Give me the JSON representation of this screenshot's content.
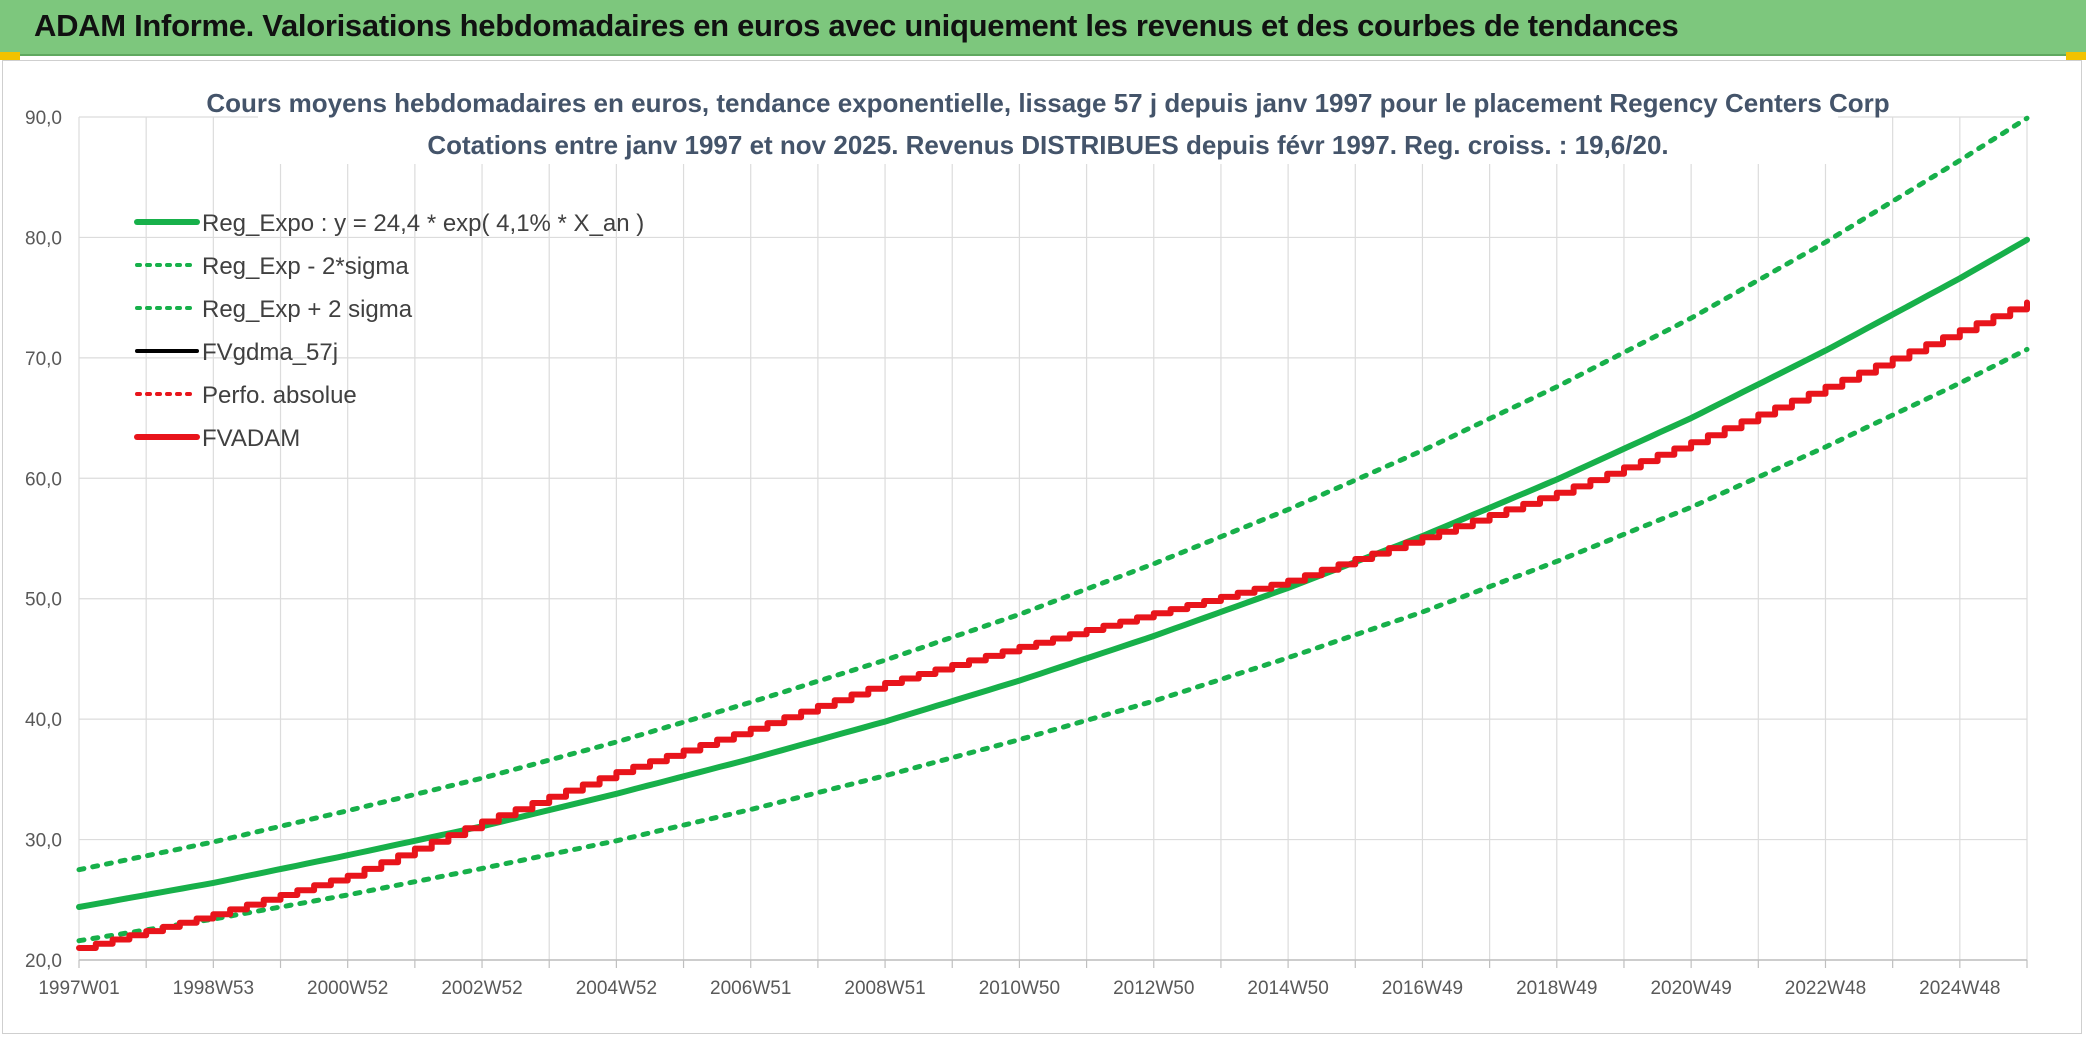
{
  "header": {
    "title": "ADAM Informe. Valorisations hebdomadaires en euros avec uniquement les revenus et des courbes de tendances"
  },
  "colors": {
    "header_bg": "#7dc77d",
    "green": "#17b04a",
    "red": "#e8141b",
    "black": "#000000",
    "grid": "#dcdcdc"
  },
  "chart_data": {
    "type": "line",
    "title": "Cours moyens hebdomadaires en euros, tendance exponentielle, lissage 57 j depuis janv 1997 pour le placement Regency Centers Corp",
    "subtitle": "Cotations entre janv 1997 et nov 2025. Revenus DISTRIBUES depuis févr 1997. Reg. croiss. : 19,6/20.",
    "xlabel": "",
    "ylabel": "",
    "xlim": [
      0,
      1508
    ],
    "ylim": [
      20,
      90
    ],
    "y_ticks": [
      "20,0",
      "30,0",
      "40,0",
      "50,0",
      "60,0",
      "70,0",
      "80,0",
      "90,0"
    ],
    "y_tick_values": [
      20,
      30,
      40,
      50,
      60,
      70,
      80,
      90
    ],
    "x_tick_labels": [
      "1997W01",
      "1998W53",
      "2000W52",
      "2002W52",
      "2004W52",
      "2006W51",
      "2008W51",
      "2010W50",
      "2012W50",
      "2014W50",
      "2016W49",
      "2018W49",
      "2020W49",
      "2022W48",
      "2024W48"
    ],
    "x_tick_weeks": [
      0,
      104,
      208,
      312,
      416,
      520,
      624,
      728,
      832,
      936,
      1040,
      1144,
      1248,
      1352,
      1456
    ],
    "grid": true,
    "legend_position": "top-left",
    "legend": [
      {
        "label": "Reg_Expo : y = 24,4 * exp( 4,1% *  X_an )",
        "color": "#17b04a",
        "style": "solid-thick"
      },
      {
        "label": "Reg_Exp - 2*sigma",
        "color": "#17b04a",
        "style": "dotted"
      },
      {
        "label": "Reg_Exp + 2 sigma",
        "color": "#17b04a",
        "style": "dotted"
      },
      {
        "label": "FVgdma_57j",
        "color": "#000000",
        "style": "solid"
      },
      {
        "label": "Perfo. absolue",
        "color": "#e8141b",
        "style": "dotted"
      },
      {
        "label": "FVADAM",
        "color": "#e8141b",
        "style": "solid-thick"
      }
    ],
    "series": [
      {
        "name": "Reg_Expo",
        "x": [
          0,
          104,
          208,
          312,
          416,
          520,
          624,
          728,
          832,
          936,
          1040,
          1144,
          1248,
          1352,
          1456,
          1508
        ],
        "values": [
          24.4,
          26.4,
          28.7,
          31.1,
          33.8,
          36.7,
          39.8,
          43.2,
          46.9,
          50.9,
          55.2,
          59.9,
          65.0,
          70.6,
          76.6,
          79.8
        ]
      },
      {
        "name": "Reg_Exp - 2*sigma",
        "x": [
          0,
          104,
          208,
          312,
          416,
          520,
          624,
          728,
          832,
          936,
          1040,
          1144,
          1248,
          1352,
          1456,
          1508
        ],
        "values": [
          21.6,
          23.4,
          25.4,
          27.6,
          29.9,
          32.5,
          35.3,
          38.3,
          41.5,
          45.1,
          48.9,
          53.1,
          57.6,
          62.6,
          67.9,
          70.7
        ]
      },
      {
        "name": "Reg_Exp + 2 sigma",
        "x": [
          0,
          104,
          208,
          312,
          416,
          520,
          624,
          728,
          832,
          936,
          1040,
          1144,
          1248,
          1352,
          1456,
          1508
        ],
        "values": [
          27.5,
          29.8,
          32.4,
          35.1,
          38.1,
          41.4,
          44.9,
          48.7,
          52.9,
          57.4,
          62.3,
          67.6,
          73.3,
          79.6,
          86.4,
          89.9
        ]
      },
      {
        "name": "FVADAM",
        "x": [
          0,
          104,
          208,
          312,
          416,
          520,
          624,
          728,
          832,
          936,
          1040,
          1144,
          1248,
          1352,
          1456,
          1508
        ],
        "values": [
          21.0,
          23.8,
          27.0,
          31.5,
          35.6,
          39.2,
          43.0,
          46.0,
          48.8,
          51.5,
          55.1,
          58.8,
          63.0,
          67.6,
          72.3,
          74.6
        ]
      }
    ]
  }
}
